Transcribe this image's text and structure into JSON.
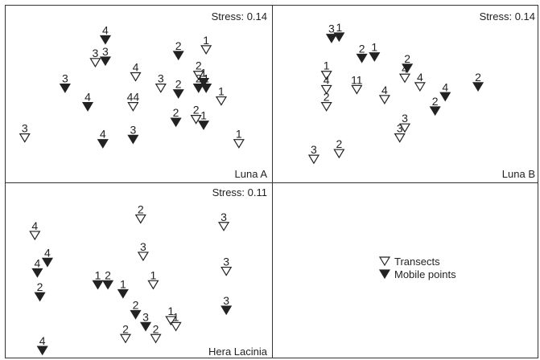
{
  "legend": {
    "transects": "Transects",
    "mobile_points": "Mobile points",
    "transect_symbol": "open-down-triangle",
    "mobile_symbol": "filled-down-triangle"
  },
  "colors": {
    "frame": "#333333",
    "marker": "#222222",
    "background": "#ffffff"
  },
  "chart_data": [
    {
      "type": "scatter",
      "title": "Luna A",
      "stress": "Stress: 0.14",
      "xlim": [
        0,
        1
      ],
      "ylim": [
        0,
        1
      ],
      "points": [
        {
          "label": "4",
          "kind": "mobile",
          "x": 0.38,
          "y": 0.89
        },
        {
          "label": "1",
          "kind": "transect",
          "x": 0.78,
          "y": 0.82
        },
        {
          "label": "2",
          "kind": "mobile",
          "x": 0.67,
          "y": 0.78
        },
        {
          "label": "3",
          "kind": "transect",
          "x": 0.34,
          "y": 0.73
        },
        {
          "label": "3",
          "kind": "mobile",
          "x": 0.38,
          "y": 0.74
        },
        {
          "label": "4",
          "kind": "transect",
          "x": 0.5,
          "y": 0.63
        },
        {
          "label": "2",
          "kind": "transect",
          "x": 0.75,
          "y": 0.64
        },
        {
          "label": "1",
          "kind": "mobile",
          "x": 0.77,
          "y": 0.59
        },
        {
          "label": "3",
          "kind": "mobile",
          "x": 0.22,
          "y": 0.55
        },
        {
          "label": "3",
          "kind": "transect",
          "x": 0.6,
          "y": 0.55
        },
        {
          "label": "2",
          "kind": "mobile",
          "x": 0.67,
          "y": 0.51
        },
        {
          "label": "2",
          "kind": "mobile",
          "x": 0.75,
          "y": 0.55
        },
        {
          "label": "1",
          "kind": "mobile",
          "x": 0.78,
          "y": 0.55
        },
        {
          "label": "1",
          "kind": "transect",
          "x": 0.84,
          "y": 0.46
        },
        {
          "label": "4",
          "kind": "mobile",
          "x": 0.31,
          "y": 0.42
        },
        {
          "label": "44",
          "kind": "transect",
          "x": 0.49,
          "y": 0.42
        },
        {
          "label": "2",
          "kind": "mobile",
          "x": 0.66,
          "y": 0.31
        },
        {
          "label": "2",
          "kind": "transect",
          "x": 0.74,
          "y": 0.33
        },
        {
          "label": "1",
          "kind": "mobile",
          "x": 0.77,
          "y": 0.29
        },
        {
          "label": "3",
          "kind": "transect",
          "x": 0.06,
          "y": 0.2
        },
        {
          "label": "4",
          "kind": "mobile",
          "x": 0.37,
          "y": 0.16
        },
        {
          "label": "3",
          "kind": "mobile",
          "x": 0.49,
          "y": 0.19
        },
        {
          "label": "1",
          "kind": "transect",
          "x": 0.91,
          "y": 0.16
        }
      ]
    },
    {
      "type": "scatter",
      "title": "Luna B",
      "stress": "Stress: 0.14",
      "xlim": [
        0,
        1
      ],
      "ylim": [
        0,
        1
      ],
      "points": [
        {
          "label": "3",
          "kind": "mobile",
          "x": 0.21,
          "y": 0.9
        },
        {
          "label": "1",
          "kind": "mobile",
          "x": 0.24,
          "y": 0.91
        },
        {
          "label": "2",
          "kind": "mobile",
          "x": 0.33,
          "y": 0.76
        },
        {
          "label": "1",
          "kind": "mobile",
          "x": 0.38,
          "y": 0.77
        },
        {
          "label": "2",
          "kind": "mobile",
          "x": 0.51,
          "y": 0.69
        },
        {
          "label": "4",
          "kind": "transect",
          "x": 0.5,
          "y": 0.62
        },
        {
          "label": "4",
          "kind": "transect",
          "x": 0.56,
          "y": 0.56
        },
        {
          "label": "2",
          "kind": "mobile",
          "x": 0.79,
          "y": 0.56
        },
        {
          "label": "4",
          "kind": "mobile",
          "x": 0.66,
          "y": 0.49
        },
        {
          "label": "2",
          "kind": "mobile",
          "x": 0.62,
          "y": 0.39
        },
        {
          "label": "1",
          "kind": "transect",
          "x": 0.19,
          "y": 0.64
        },
        {
          "label": "4",
          "kind": "transect",
          "x": 0.19,
          "y": 0.54
        },
        {
          "label": "2",
          "kind": "transect",
          "x": 0.19,
          "y": 0.42
        },
        {
          "label": "11",
          "kind": "transect",
          "x": 0.31,
          "y": 0.54
        },
        {
          "label": "4",
          "kind": "transect",
          "x": 0.42,
          "y": 0.47
        },
        {
          "label": "3",
          "kind": "transect",
          "x": 0.5,
          "y": 0.27
        },
        {
          "label": "3",
          "kind": "transect",
          "x": 0.48,
          "y": 0.2
        },
        {
          "label": "2",
          "kind": "transect",
          "x": 0.24,
          "y": 0.09
        },
        {
          "label": "3",
          "kind": "transect",
          "x": 0.14,
          "y": 0.05
        }
      ]
    },
    {
      "type": "scatter",
      "title": "Hera Lacinia",
      "stress": "Stress: 0.11",
      "xlim": [
        0,
        1
      ],
      "ylim": [
        0,
        1
      ],
      "points": [
        {
          "label": "2",
          "kind": "transect",
          "x": 0.52,
          "y": 0.89
        },
        {
          "label": "3",
          "kind": "transect",
          "x": 0.85,
          "y": 0.84
        },
        {
          "label": "4",
          "kind": "transect",
          "x": 0.1,
          "y": 0.78
        },
        {
          "label": "4",
          "kind": "mobile",
          "x": 0.15,
          "y": 0.6
        },
        {
          "label": "4",
          "kind": "mobile",
          "x": 0.11,
          "y": 0.53
        },
        {
          "label": "3",
          "kind": "transect",
          "x": 0.53,
          "y": 0.64
        },
        {
          "label": "3",
          "kind": "transect",
          "x": 0.86,
          "y": 0.54
        },
        {
          "label": "1",
          "kind": "mobile",
          "x": 0.35,
          "y": 0.45
        },
        {
          "label": "2",
          "kind": "mobile",
          "x": 0.39,
          "y": 0.45
        },
        {
          "label": "1",
          "kind": "transect",
          "x": 0.57,
          "y": 0.45
        },
        {
          "label": "1",
          "kind": "mobile",
          "x": 0.45,
          "y": 0.39
        },
        {
          "label": "2",
          "kind": "mobile",
          "x": 0.12,
          "y": 0.37
        },
        {
          "label": "3",
          "kind": "mobile",
          "x": 0.86,
          "y": 0.28
        },
        {
          "label": "2",
          "kind": "mobile",
          "x": 0.5,
          "y": 0.25
        },
        {
          "label": "3",
          "kind": "mobile",
          "x": 0.54,
          "y": 0.17
        },
        {
          "label": "1",
          "kind": "transect",
          "x": 0.64,
          "y": 0.21
        },
        {
          "label": "1",
          "kind": "transect",
          "x": 0.66,
          "y": 0.17
        },
        {
          "label": "2",
          "kind": "transect",
          "x": 0.46,
          "y": 0.09
        },
        {
          "label": "2",
          "kind": "transect",
          "x": 0.58,
          "y": 0.09
        },
        {
          "label": "4",
          "kind": "mobile",
          "x": 0.13,
          "y": 0.01
        }
      ]
    }
  ]
}
